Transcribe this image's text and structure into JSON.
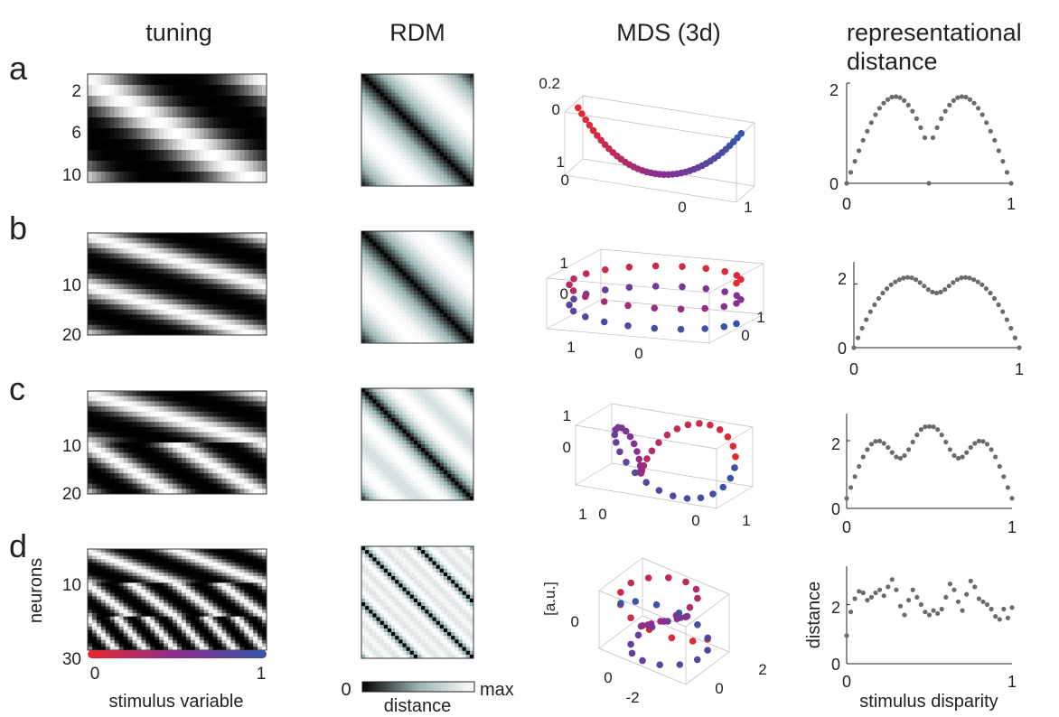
{
  "column_titles": {
    "tuning": "tuning",
    "rdm": "RDM",
    "mds": "MDS (3d)",
    "dist_line1": "representational",
    "dist_line2": "distance"
  },
  "panel_letters": [
    "a",
    "b",
    "c",
    "d"
  ],
  "colors": {
    "stim_start": "#e8282d",
    "stim_mid": "#8a2f8f",
    "stim_end": "#3556a8",
    "distance_points": "#6b6b6b",
    "colormap_low": "#000000",
    "colormap_high": "#ffffff",
    "colormap_mid": "#9ab4b4"
  },
  "tuning_axis": {
    "xlabel": "stimulus variable",
    "ylabel": "neurons",
    "x_ticks": [
      "0",
      "1"
    ],
    "y_ticks": [
      [
        "2",
        "6",
        "10"
      ],
      [
        "10",
        "20"
      ],
      [
        "10",
        "20"
      ],
      [
        "10",
        "30"
      ]
    ]
  },
  "rdm_colorbar": {
    "label": "distance",
    "min_label": "0",
    "max_label": "max",
    "colormap": "gray-teal"
  },
  "mds_axes": {
    "zlabel": "[a.u.]",
    "z_ticks": [
      [
        "0.2",
        "0"
      ],
      [
        "1",
        "0"
      ],
      [
        "1",
        "0"
      ],
      [
        "0"
      ]
    ],
    "left_ticks": [
      [
        "1",
        "0"
      ],
      [
        "1",
        "0"
      ],
      [
        "1",
        "0"
      ],
      [
        "0",
        "-2"
      ]
    ],
    "right_ticks": [
      [
        "0",
        "1"
      ],
      [
        "1",
        "0"
      ],
      [
        "0",
        "1"
      ],
      [
        "0",
        "2"
      ]
    ]
  },
  "distance_axis": {
    "xlabel": "stimulus disparity",
    "ylabel": "distance",
    "x_ticks": [
      "0",
      "1"
    ],
    "y_ticks": [
      [
        "0",
        "2"
      ],
      [
        "0",
        "2"
      ],
      [
        "0",
        "2"
      ],
      [
        "0",
        "2"
      ]
    ]
  },
  "chart_data": [
    {
      "type": "heatmap",
      "panel": "a",
      "title": "tuning",
      "neurons": 10,
      "tuning_frequencies": [
        1
      ],
      "phase_offsets_per_neuron": 0.1,
      "xlabel": "",
      "ylabel": "",
      "xlim": [
        0,
        1
      ]
    },
    {
      "type": "heatmap",
      "panel": "b",
      "title": "tuning",
      "neurons": 20,
      "tuning_frequencies": [
        1,
        1
      ],
      "phase_offsets_per_neuron": 0.1,
      "xlim": [
        0,
        1
      ]
    },
    {
      "type": "heatmap",
      "panel": "c",
      "title": "tuning",
      "neurons": 20,
      "tuning_frequencies": [
        1,
        2
      ],
      "phase_offsets_per_neuron": 0.1,
      "xlim": [
        0,
        1
      ]
    },
    {
      "type": "heatmap",
      "panel": "d",
      "title": "tuning",
      "neurons": 30,
      "tuning_frequencies": [
        2,
        4,
        6
      ],
      "phase_offsets_per_neuron": 0.1,
      "xlim": [
        0,
        1
      ]
    },
    {
      "type": "scatter",
      "panel": "a",
      "title": "representational distance",
      "x": [
        0.0,
        0.025,
        0.05,
        0.075,
        0.1,
        0.125,
        0.15,
        0.175,
        0.2,
        0.225,
        0.25,
        0.275,
        0.3,
        0.325,
        0.35,
        0.375,
        0.4,
        0.425,
        0.45,
        0.475,
        0.5,
        0.525,
        0.55,
        0.575,
        0.6,
        0.625,
        0.65,
        0.675,
        0.7,
        0.725,
        0.75,
        0.775,
        0.8,
        0.825,
        0.85,
        0.875,
        0.9,
        0.925,
        0.95,
        0.975,
        1.0
      ],
      "y": [
        0.0,
        0.22,
        0.44,
        0.65,
        0.86,
        1.04,
        1.21,
        1.37,
        1.5,
        1.6,
        1.67,
        1.72,
        1.73,
        1.71,
        1.65,
        1.56,
        1.44,
        1.29,
        1.11,
        0.91,
        0.0,
        0.91,
        1.11,
        1.29,
        1.44,
        1.56,
        1.65,
        1.71,
        1.73,
        1.72,
        1.67,
        1.6,
        1.5,
        1.37,
        1.21,
        1.04,
        0.86,
        0.65,
        0.44,
        0.22,
        0.0
      ],
      "xlim": [
        0,
        1
      ],
      "ylim": [
        0,
        2
      ]
    },
    {
      "type": "scatter",
      "panel": "b",
      "title": "representational distance",
      "x": [
        0.0,
        0.025,
        0.05,
        0.075,
        0.1,
        0.125,
        0.15,
        0.175,
        0.2,
        0.225,
        0.25,
        0.275,
        0.3,
        0.325,
        0.35,
        0.375,
        0.4,
        0.425,
        0.45,
        0.475,
        0.5,
        0.525,
        0.55,
        0.575,
        0.6,
        0.625,
        0.65,
        0.675,
        0.7,
        0.725,
        0.75,
        0.775,
        0.8,
        0.825,
        0.85,
        0.875,
        0.9,
        0.925,
        0.95,
        0.975,
        1.0
      ],
      "y": [
        0.0,
        0.31,
        0.61,
        0.88,
        1.13,
        1.35,
        1.55,
        1.72,
        1.86,
        1.98,
        2.07,
        2.14,
        2.19,
        2.21,
        2.2,
        2.14,
        2.05,
        1.94,
        1.83,
        1.75,
        1.72,
        1.75,
        1.83,
        1.94,
        2.05,
        2.14,
        2.2,
        2.21,
        2.19,
        2.14,
        2.07,
        1.98,
        1.86,
        1.72,
        1.55,
        1.35,
        1.13,
        0.88,
        0.61,
        0.31,
        0.0
      ],
      "xlim": [
        0,
        1
      ],
      "ylim": [
        0,
        2.7
      ]
    },
    {
      "type": "scatter",
      "panel": "c",
      "title": "representational distance",
      "x": [
        0.0,
        0.025,
        0.05,
        0.075,
        0.1,
        0.125,
        0.15,
        0.175,
        0.2,
        0.225,
        0.25,
        0.275,
        0.3,
        0.325,
        0.35,
        0.375,
        0.4,
        0.425,
        0.45,
        0.475,
        0.5,
        0.525,
        0.55,
        0.575,
        0.6,
        0.625,
        0.65,
        0.675,
        0.7,
        0.725,
        0.75,
        0.775,
        0.8,
        0.825,
        0.85,
        0.875,
        0.9,
        0.925,
        0.95,
        0.975,
        1.0
      ],
      "y": [
        0.3,
        0.62,
        0.94,
        1.24,
        1.52,
        1.74,
        1.9,
        1.98,
        1.99,
        1.92,
        1.8,
        1.65,
        1.52,
        1.48,
        1.56,
        1.74,
        1.96,
        2.17,
        2.33,
        2.41,
        2.42,
        2.41,
        2.33,
        2.17,
        1.96,
        1.74,
        1.56,
        1.48,
        1.52,
        1.65,
        1.8,
        1.92,
        1.99,
        1.98,
        1.9,
        1.74,
        1.52,
        1.24,
        0.94,
        0.62,
        0.3
      ],
      "xlim": [
        0,
        1
      ],
      "ylim": [
        0,
        2.8
      ]
    },
    {
      "type": "scatter",
      "panel": "d",
      "title": "representational distance",
      "x": [
        0.0,
        0.025,
        0.05,
        0.075,
        0.1,
        0.125,
        0.15,
        0.175,
        0.2,
        0.225,
        0.25,
        0.275,
        0.3,
        0.325,
        0.35,
        0.375,
        0.4,
        0.425,
        0.45,
        0.475,
        0.5,
        0.525,
        0.55,
        0.575,
        0.6,
        0.625,
        0.65,
        0.675,
        0.7,
        0.725,
        0.75,
        0.775,
        0.8,
        0.825,
        0.85,
        0.875,
        0.9,
        0.925,
        0.95,
        0.975,
        1.0
      ],
      "y": [
        0.95,
        1.75,
        2.2,
        2.45,
        2.4,
        2.15,
        2.25,
        2.4,
        2.5,
        2.3,
        2.6,
        2.85,
        2.5,
        1.95,
        1.65,
        2.15,
        2.5,
        2.25,
        2.0,
        1.75,
        1.65,
        1.8,
        1.7,
        1.85,
        2.25,
        2.7,
        2.5,
        2.1,
        1.8,
        2.35,
        2.8,
        2.6,
        2.2,
        2.1,
        2.0,
        1.85,
        1.6,
        1.5,
        1.85,
        1.55,
        1.9
      ],
      "xlim": [
        0,
        1
      ],
      "ylim": [
        0,
        3.3
      ]
    },
    {
      "type": "scatter",
      "panel": "a",
      "title": "MDS (3d)",
      "shape": "U-curve",
      "points": 41,
      "color_by": "stimulus variable"
    },
    {
      "type": "scatter",
      "panel": "b",
      "title": "MDS (3d)",
      "shape": "helix, 2 loops",
      "points": 41,
      "color_by": "stimulus variable"
    },
    {
      "type": "scatter",
      "panel": "c",
      "title": "MDS (3d)",
      "shape": "twisted loops",
      "points": 41,
      "color_by": "stimulus variable"
    },
    {
      "type": "scatter",
      "panel": "d",
      "title": "MDS (3d)",
      "shape": "sphere-like cloud",
      "points": 41,
      "color_by": "stimulus variable"
    }
  ]
}
